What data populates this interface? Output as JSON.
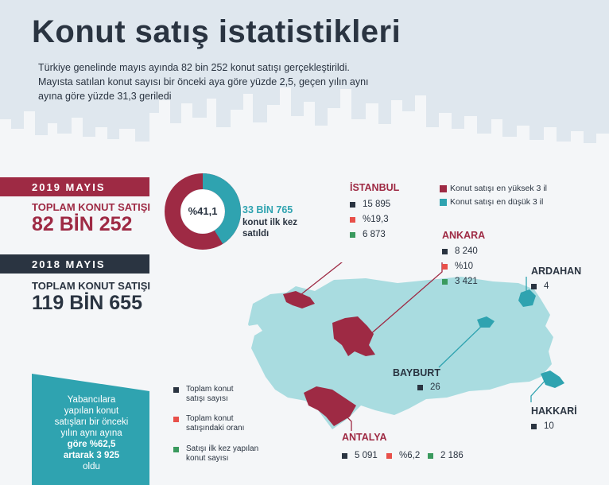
{
  "title": "Konut satış istatistikleri",
  "subtitle": [
    "Türkiye genelinde mayıs ayında 82 bin 252 konut satışı gerçekleştirildi.",
    "Mayısta satılan konut sayısı bir önceki aya göre yüzde 2,5, geçen yılın aynı",
    "ayına göre yüzde 31,3 geriledi"
  ],
  "colors": {
    "crimson": "#9e2a44",
    "navy": "#2a3441",
    "teal": "#2fa3b0",
    "map": "#a9dce0",
    "red": "#e8504a",
    "green": "#3a9a5e",
    "skyline": "#e1e9ef"
  },
  "y2019": {
    "band": "2019 MAYIS",
    "label": "TOPLAM KONUT SATIŞI",
    "value": "82 BİN 252"
  },
  "y2018": {
    "band": "2018 MAYIS",
    "label": "TOPLAM KONUT SATIŞI",
    "value": "119 BİN 655"
  },
  "donut": {
    "pct_label": "%41,1",
    "first_share": 0.411,
    "value_text": "33 BİN 765",
    "caption_lines": [
      "konut ilk kez",
      "satıldı"
    ]
  },
  "legend_top": {
    "highest": "Konut satışı en yüksek 3 il",
    "lowest": "Konut satışı en düşük 3 il"
  },
  "legend_bottom": [
    {
      "icon": "navy-square-icon",
      "lines": [
        "Toplam konut",
        "satışı sayısı"
      ]
    },
    {
      "icon": "red-square-icon",
      "lines": [
        "Toplam konut",
        "satışındaki oranı"
      ]
    },
    {
      "icon": "green-square-icon",
      "lines": [
        "Satışı ilk kez yapılan",
        "konut sayısı"
      ]
    }
  ],
  "cities": {
    "istanbul": {
      "name": "İSTANBUL",
      "total": "15 895",
      "share": "%19,3",
      "first": "6 873"
    },
    "ankara": {
      "name": "ANKARA",
      "total": "8 240",
      "share": "%10",
      "first": "3 421"
    },
    "antalya": {
      "name": "ANTALYA",
      "total": "5 091",
      "share": "%6,2",
      "first": "2 186"
    },
    "ardahan": {
      "name": "ARDAHAN",
      "total": "4"
    },
    "bayburt": {
      "name": "BAYBURT",
      "total": "26"
    },
    "hakkari": {
      "name": "HAKKARİ",
      "total": "10"
    }
  },
  "foreign": {
    "lines": [
      "Yabancılara",
      "yapılan konut",
      "satışları bir önceki",
      "yılın aynı ayına",
      "göre %62,5",
      "artarak 3 925",
      "oldu"
    ]
  }
}
